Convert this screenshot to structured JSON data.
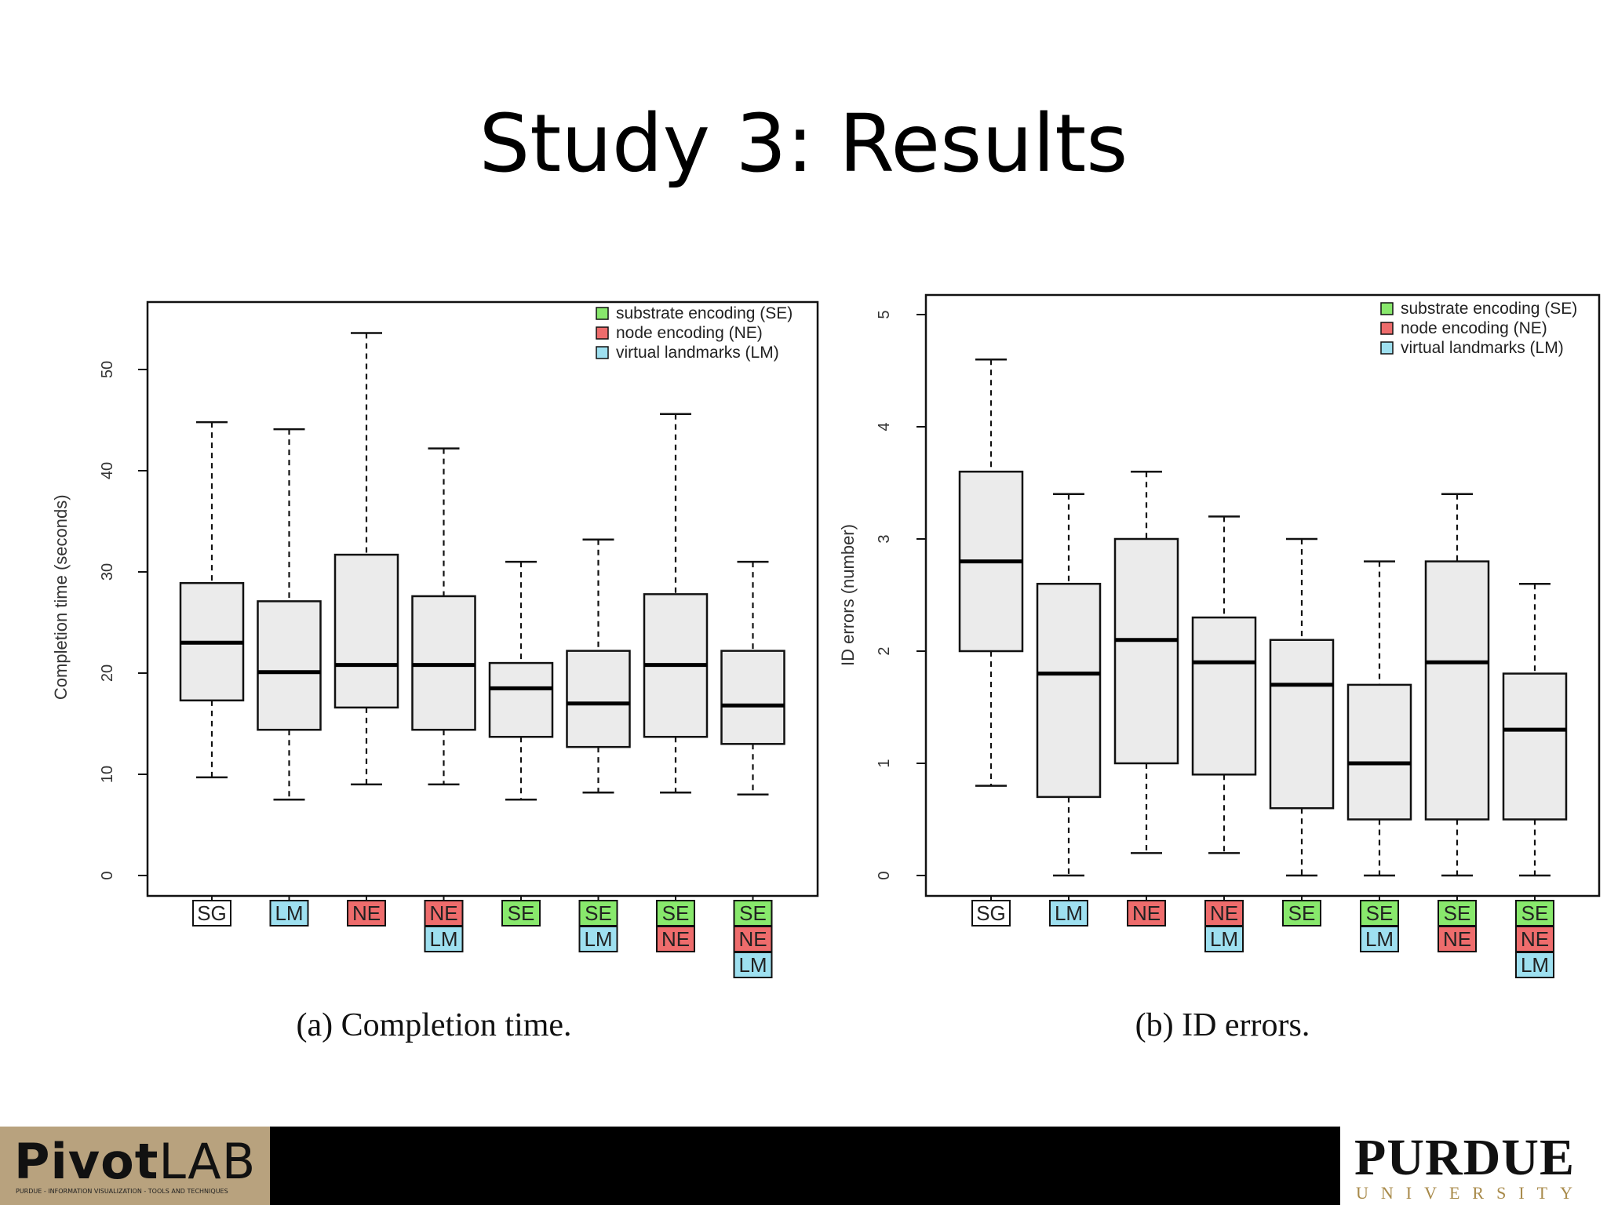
{
  "slide": {
    "title": "Study 3: Results"
  },
  "footer": {
    "left_logo": "PivotLAB",
    "left_logo_main": "Pivot",
    "left_logo_suffix": "LAB",
    "left_subtitle": "PURDUE - INFORMATION VISUALIZATION - TOOLS AND TECHNIQUES",
    "right_logo": "PURDUE",
    "right_subtitle": "UNIVERSITY"
  },
  "colors": {
    "SE": "#88e86c",
    "NE": "#ee6c6c",
    "LM": "#9ee0f0",
    "SG": "#ffffff",
    "box_fill": "#ebebeb"
  },
  "legend": [
    {
      "key": "SE",
      "label": "substrate encoding (SE)"
    },
    {
      "key": "NE",
      "label": "node encoding (NE)"
    },
    {
      "key": "LM",
      "label": "virtual landmarks (LM)"
    }
  ],
  "chart_data": [
    {
      "type": "box",
      "caption": "(a)  Completion time.",
      "ylabel": "Completion time (seconds)",
      "ylim": [
        0,
        55
      ],
      "yticks": [
        0,
        10,
        20,
        30,
        40,
        50
      ],
      "legend_position": "top-right",
      "categories": [
        [
          "SG"
        ],
        [
          "LM"
        ],
        [
          "NE"
        ],
        [
          "NE",
          "LM"
        ],
        [
          "SE"
        ],
        [
          "SE",
          "LM"
        ],
        [
          "SE",
          "NE"
        ],
        [
          "SE",
          "NE",
          "LM"
        ]
      ],
      "boxes": [
        {
          "whisker_low": 9.7,
          "q1": 17.3,
          "median": 23.0,
          "q3": 28.9,
          "whisker_high": 44.8
        },
        {
          "whisker_low": 7.5,
          "q1": 14.4,
          "median": 20.1,
          "q3": 27.1,
          "whisker_high": 44.1
        },
        {
          "whisker_low": 9.0,
          "q1": 16.6,
          "median": 20.8,
          "q3": 31.7,
          "whisker_high": 53.6
        },
        {
          "whisker_low": 9.0,
          "q1": 14.4,
          "median": 20.8,
          "q3": 27.6,
          "whisker_high": 42.2
        },
        {
          "whisker_low": 7.5,
          "q1": 13.7,
          "median": 18.5,
          "q3": 21.0,
          "whisker_high": 31.0
        },
        {
          "whisker_low": 8.2,
          "q1": 12.7,
          "median": 17.0,
          "q3": 22.2,
          "whisker_high": 33.2
        },
        {
          "whisker_low": 8.2,
          "q1": 13.7,
          "median": 20.8,
          "q3": 27.8,
          "whisker_high": 45.6
        },
        {
          "whisker_low": 8.0,
          "q1": 13.0,
          "median": 16.8,
          "q3": 22.2,
          "whisker_high": 31.0
        }
      ]
    },
    {
      "type": "box",
      "caption": "(b)  ID errors.",
      "ylabel": "ID errors (number)",
      "ylim": [
        0,
        5
      ],
      "yticks": [
        0,
        1,
        2,
        3,
        4,
        5
      ],
      "legend_position": "top-right",
      "categories": [
        [
          "SG"
        ],
        [
          "LM"
        ],
        [
          "NE"
        ],
        [
          "NE",
          "LM"
        ],
        [
          "SE"
        ],
        [
          "SE",
          "LM"
        ],
        [
          "SE",
          "NE"
        ],
        [
          "SE",
          "NE",
          "LM"
        ]
      ],
      "boxes": [
        {
          "whisker_low": 0.8,
          "q1": 2.0,
          "median": 2.8,
          "q3": 3.6,
          "whisker_high": 4.6
        },
        {
          "whisker_low": 0.0,
          "q1": 0.7,
          "median": 1.8,
          "q3": 2.6,
          "whisker_high": 3.4
        },
        {
          "whisker_low": 0.2,
          "q1": 1.0,
          "median": 2.1,
          "q3": 3.0,
          "whisker_high": 3.6
        },
        {
          "whisker_low": 0.2,
          "q1": 0.9,
          "median": 1.9,
          "q3": 2.3,
          "whisker_high": 3.2
        },
        {
          "whisker_low": 0.0,
          "q1": 0.6,
          "median": 1.7,
          "q3": 2.1,
          "whisker_high": 3.0
        },
        {
          "whisker_low": 0.0,
          "q1": 0.5,
          "median": 1.0,
          "q3": 1.7,
          "whisker_high": 2.8
        },
        {
          "whisker_low": 0.0,
          "q1": 0.5,
          "median": 1.9,
          "q3": 2.8,
          "whisker_high": 3.4
        },
        {
          "whisker_low": 0.0,
          "q1": 0.5,
          "median": 1.3,
          "q3": 1.8,
          "whisker_high": 2.6
        }
      ]
    }
  ]
}
